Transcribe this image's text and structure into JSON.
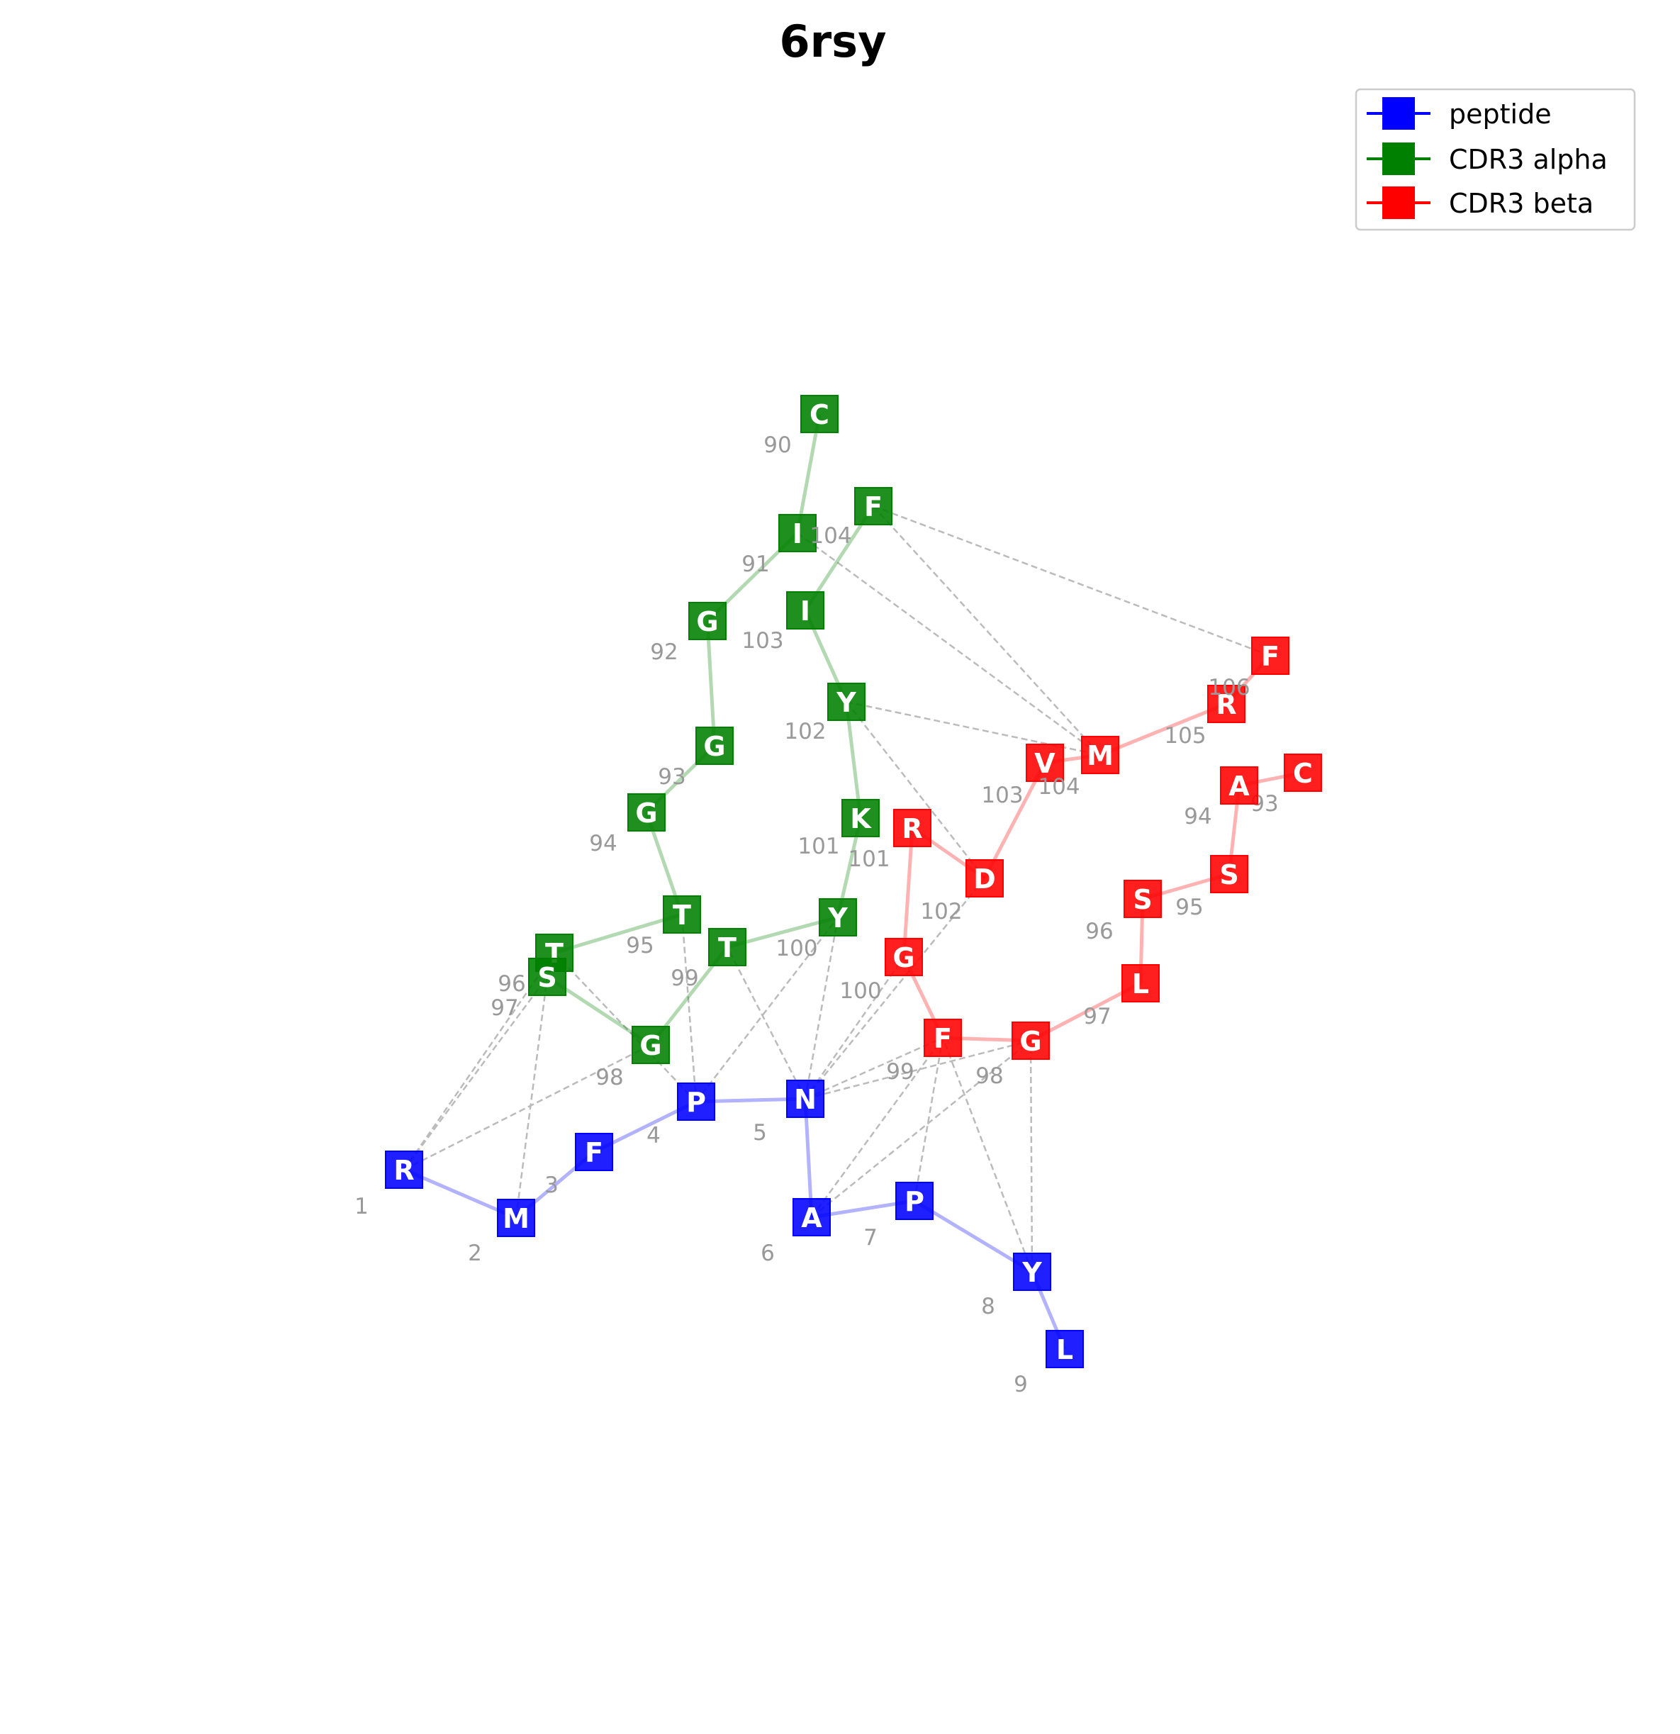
{
  "title": "6rsy",
  "colors": {
    "peptide": "#0000ff",
    "cdr3_alpha": "#008000",
    "cdr3_beta": "#ff0000",
    "contact": "#bbbbbb",
    "resnum": "#999999"
  },
  "legend": {
    "placement": "top-right",
    "items": [
      {
        "label": "peptide",
        "color": "#0000ff"
      },
      {
        "label": "CDR3 alpha",
        "color": "#008000"
      },
      {
        "label": "CDR3 beta",
        "color": "#ff0000"
      }
    ]
  },
  "chains": {
    "peptide": {
      "residues": [
        {
          "letter": "R",
          "num": "1"
        },
        {
          "letter": "M",
          "num": "2"
        },
        {
          "letter": "F",
          "num": "3"
        },
        {
          "letter": "P",
          "num": "4"
        },
        {
          "letter": "N",
          "num": "5"
        },
        {
          "letter": "A",
          "num": "6"
        },
        {
          "letter": "P",
          "num": "7"
        },
        {
          "letter": "Y",
          "num": "8"
        },
        {
          "letter": "L",
          "num": "9"
        }
      ]
    },
    "cdr3_alpha": {
      "residues": [
        {
          "letter": "C",
          "num": "90"
        },
        {
          "letter": "I",
          "num": "91"
        },
        {
          "letter": "G",
          "num": "92"
        },
        {
          "letter": "G",
          "num": "93"
        },
        {
          "letter": "G",
          "num": "94"
        },
        {
          "letter": "T",
          "num": "95"
        },
        {
          "letter": "T",
          "num": "96"
        },
        {
          "letter": "S",
          "num": "97"
        },
        {
          "letter": "G",
          "num": "98"
        },
        {
          "letter": "T",
          "num": "99"
        },
        {
          "letter": "Y",
          "num": "100"
        },
        {
          "letter": "K",
          "num": "101"
        },
        {
          "letter": "Y",
          "num": "102"
        },
        {
          "letter": "I",
          "num": "103"
        },
        {
          "letter": "F",
          "num": "104"
        }
      ]
    },
    "cdr3_beta": {
      "residues": [
        {
          "letter": "C",
          "num": "93"
        },
        {
          "letter": "A",
          "num": "94"
        },
        {
          "letter": "S",
          "num": "95"
        },
        {
          "letter": "S",
          "num": "96"
        },
        {
          "letter": "L",
          "num": "97"
        },
        {
          "letter": "G",
          "num": "98"
        },
        {
          "letter": "F",
          "num": "99"
        },
        {
          "letter": "G",
          "num": "100"
        },
        {
          "letter": "R",
          "num": "101"
        },
        {
          "letter": "D",
          "num": "102"
        },
        {
          "letter": "V",
          "num": "103"
        },
        {
          "letter": "M",
          "num": "104"
        },
        {
          "letter": "R",
          "num": "105"
        },
        {
          "letter": "F",
          "num": "106"
        }
      ]
    }
  },
  "contacts": [
    [
      "peptide:0",
      "cdr3_alpha:6"
    ],
    [
      "peptide:0",
      "cdr3_alpha:7"
    ],
    [
      "peptide:0",
      "cdr3_alpha:8"
    ],
    [
      "peptide:1",
      "cdr3_alpha:7"
    ],
    [
      "peptide:3",
      "cdr3_alpha:5"
    ],
    [
      "peptide:3",
      "cdr3_alpha:6"
    ],
    [
      "peptide:3",
      "cdr3_alpha:10"
    ],
    [
      "peptide:4",
      "cdr3_alpha:9"
    ],
    [
      "peptide:4",
      "cdr3_alpha:10"
    ],
    [
      "peptide:4",
      "cdr3_beta:5"
    ],
    [
      "peptide:4",
      "cdr3_beta:6"
    ],
    [
      "peptide:4",
      "cdr3_beta:7"
    ],
    [
      "peptide:4",
      "cdr3_beta:9"
    ],
    [
      "peptide:5",
      "cdr3_beta:5"
    ],
    [
      "peptide:5",
      "cdr3_beta:6"
    ],
    [
      "peptide:6",
      "cdr3_beta:6"
    ],
    [
      "peptide:7",
      "cdr3_beta:5"
    ],
    [
      "peptide:7",
      "cdr3_beta:6"
    ],
    [
      "cdr3_alpha:1",
      "cdr3_beta:11"
    ],
    [
      "cdr3_alpha:14",
      "cdr3_beta:11"
    ],
    [
      "cdr3_alpha:14",
      "cdr3_beta:13"
    ],
    [
      "cdr3_alpha:12",
      "cdr3_beta:11"
    ],
    [
      "cdr3_alpha:12",
      "cdr3_beta:9"
    ]
  ]
}
